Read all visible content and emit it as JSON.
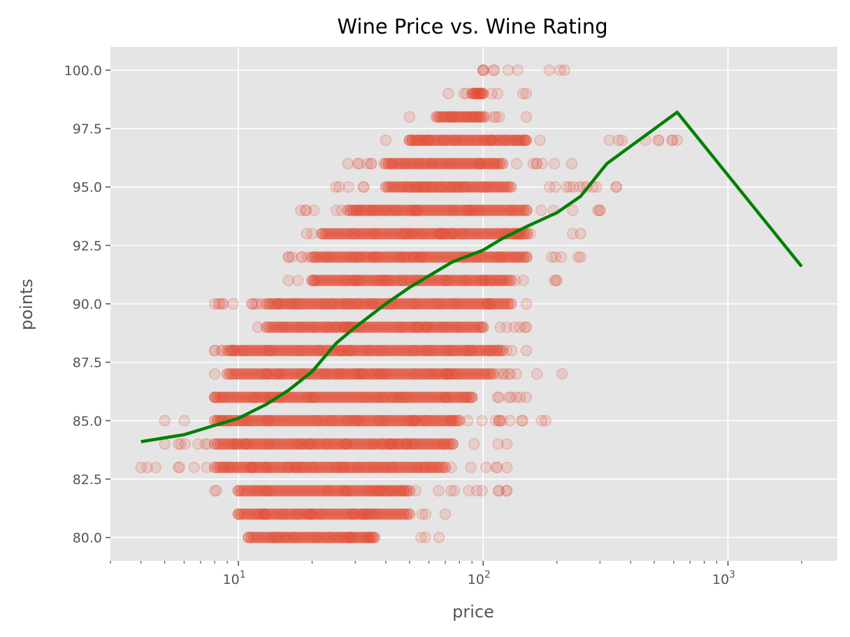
{
  "chart_data": {
    "type": "scatter",
    "title": "Wine Price vs. Wine Rating",
    "xlabel": "price",
    "ylabel": "points",
    "x_scale": "log",
    "xlim": [
      3.0,
      2800
    ],
    "ylim": [
      79.0,
      101.0
    ],
    "grid": true,
    "x_major_ticks": [
      {
        "value": 10,
        "label_base": "10",
        "label_exp": "1"
      },
      {
        "value": 100,
        "label_base": "10",
        "label_exp": "2"
      },
      {
        "value": 1000,
        "label_base": "10",
        "label_exp": "3"
      }
    ],
    "y_ticks": [
      {
        "value": 80.0,
        "label": "80.0"
      },
      {
        "value": 82.5,
        "label": "82.5"
      },
      {
        "value": 85.0,
        "label": "85.0"
      },
      {
        "value": 87.5,
        "label": "87.5"
      },
      {
        "value": 90.0,
        "label": "90.0"
      },
      {
        "value": 92.5,
        "label": "92.5"
      },
      {
        "value": 95.0,
        "label": "95.0"
      },
      {
        "value": 97.5,
        "label": "97.5"
      },
      {
        "value": 100.0,
        "label": "100.0"
      }
    ],
    "colors": {
      "scatter": "#e24a33",
      "trend": "#008000",
      "plot_bg": "#e5e5e5",
      "grid": "#ffffff"
    },
    "point_bands": [
      {
        "y": 80,
        "x_min": 11,
        "x_max": 66,
        "dense_min": 11,
        "dense_max": 36
      },
      {
        "y": 81,
        "x_min": 10,
        "x_max": 70,
        "dense_min": 10,
        "dense_max": 50
      },
      {
        "y": 82,
        "x_min": 8,
        "x_max": 125,
        "dense_min": 10,
        "dense_max": 50
      },
      {
        "y": 83,
        "x_min": 4,
        "x_max": 125,
        "dense_min": 8,
        "dense_max": 70
      },
      {
        "y": 84,
        "x_min": 5,
        "x_max": 125,
        "dense_min": 8,
        "dense_max": 75
      },
      {
        "y": 85,
        "x_min": 5,
        "x_max": 180,
        "dense_min": 8,
        "dense_max": 80
      },
      {
        "y": 86,
        "x_min": 8,
        "x_max": 150,
        "dense_min": 8,
        "dense_max": 90
      },
      {
        "y": 87,
        "x_min": 8,
        "x_max": 210,
        "dense_min": 9,
        "dense_max": 110
      },
      {
        "y": 88,
        "x_min": 8,
        "x_max": 150,
        "dense_min": 9,
        "dense_max": 120
      },
      {
        "y": 89,
        "x_min": 12,
        "x_max": 150,
        "dense_min": 13,
        "dense_max": 100
      },
      {
        "y": 90,
        "x_min": 8,
        "x_max": 150,
        "dense_min": 13,
        "dense_max": 130
      },
      {
        "y": 91,
        "x_min": 16,
        "x_max": 200,
        "dense_min": 20,
        "dense_max": 130
      },
      {
        "y": 92,
        "x_min": 16,
        "x_max": 250,
        "dense_min": 20,
        "dense_max": 150
      },
      {
        "y": 93,
        "x_min": 19,
        "x_max": 250,
        "dense_min": 22,
        "dense_max": 150
      },
      {
        "y": 94,
        "x_min": 18,
        "x_max": 300,
        "dense_min": 28,
        "dense_max": 150
      },
      {
        "y": 95,
        "x_min": 25,
        "x_max": 350,
        "dense_min": 40,
        "dense_max": 130
      },
      {
        "y": 96,
        "x_min": 28,
        "x_max": 230,
        "dense_min": 40,
        "dense_max": 120
      },
      {
        "y": 97,
        "x_min": 40,
        "x_max": 620,
        "dense_min": 50,
        "dense_max": 150
      },
      {
        "y": 98,
        "x_min": 50,
        "x_max": 150,
        "dense_min": 65,
        "dense_max": 100
      },
      {
        "y": 99,
        "x_min": 72,
        "x_max": 150,
        "dense_min": 90,
        "dense_max": 100
      },
      {
        "y": 100,
        "x_min": 100,
        "x_max": 215,
        "dense_min": 100,
        "dense_max": 100
      }
    ],
    "series": [
      {
        "type": "line",
        "points": [
          [
            4,
            84.1
          ],
          [
            6,
            84.4
          ],
          [
            8,
            84.8
          ],
          [
            10,
            85.1
          ],
          [
            13,
            85.7
          ],
          [
            16,
            86.3
          ],
          [
            20,
            87.1
          ],
          [
            25,
            88.3
          ],
          [
            30,
            89.0
          ],
          [
            40,
            90.0
          ],
          [
            50,
            90.7
          ],
          [
            60,
            91.2
          ],
          [
            75,
            91.8
          ],
          [
            100,
            92.3
          ],
          [
            120,
            92.8
          ],
          [
            150,
            93.3
          ],
          [
            200,
            93.9
          ],
          [
            250,
            94.6
          ],
          [
            320,
            96.0
          ],
          [
            620,
            98.2
          ],
          [
            2000,
            91.6
          ]
        ]
      }
    ]
  }
}
